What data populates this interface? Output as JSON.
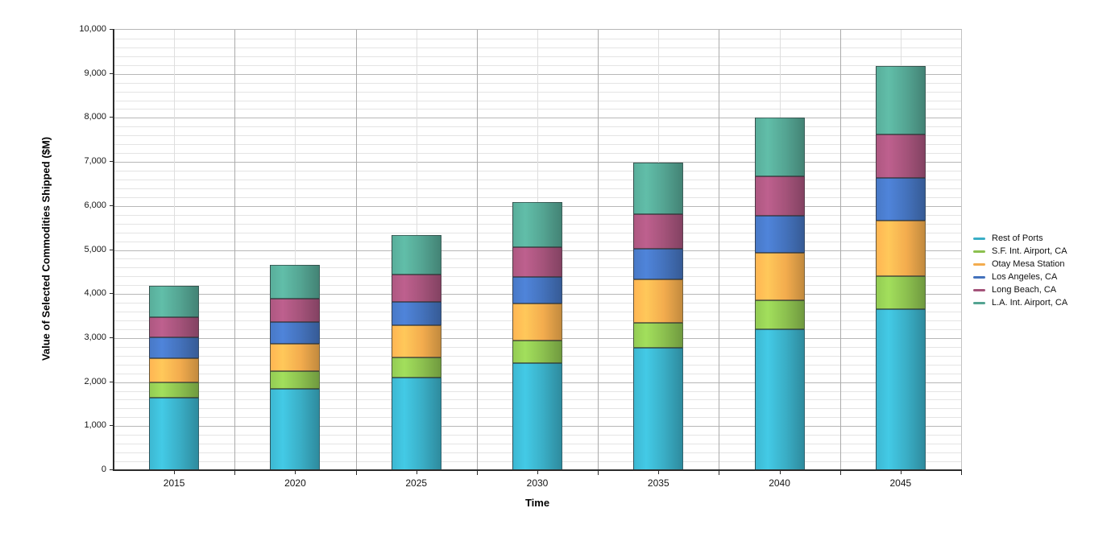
{
  "y_axis": {
    "label": "Value of Selected Commodities Shipped ($M)",
    "tick_labels": [
      "0",
      "1,000",
      "2,000",
      "3,000",
      "4,000",
      "5,000",
      "6,000",
      "7,000",
      "8,000",
      "9,000",
      "10,000"
    ],
    "max": 10000,
    "major_step": 1000,
    "minor_step": 200
  },
  "x_axis": {
    "label": "Time",
    "categories": [
      "2015",
      "2020",
      "2025",
      "2030",
      "2035",
      "2040",
      "2045"
    ]
  },
  "chart_data": {
    "type": "bar",
    "stacked": true,
    "title": "",
    "xlabel": "Time",
    "ylabel": "Value of Selected Commodities Shipped ($M)",
    "ylim": [
      0,
      10000
    ],
    "grid": true,
    "legend_position": "right",
    "categories": [
      "2015",
      "2020",
      "2025",
      "2030",
      "2035",
      "2040",
      "2045"
    ],
    "series": [
      {
        "name": "Rest of Ports",
        "color": "#3aaec6",
        "values": [
          1650,
          1840,
          2100,
          2430,
          2780,
          3195,
          3650
        ]
      },
      {
        "name": "S.F. Int. Airport, CA",
        "color": "#8cc04f",
        "values": [
          350,
          410,
          455,
          520,
          565,
          665,
          760
        ]
      },
      {
        "name": "Otay Mesa Station",
        "color": "#f3ac4e",
        "values": [
          550,
          625,
          730,
          835,
          990,
          1080,
          1255
        ]
      },
      {
        "name": "Los Angeles, CA",
        "color": "#4472bc",
        "values": [
          475,
          490,
          530,
          600,
          700,
          840,
          970
        ]
      },
      {
        "name": "Long Beach, CA",
        "color": "#a4537a",
        "values": [
          440,
          530,
          625,
          680,
          775,
          885,
          990
        ]
      },
      {
        "name": "L.A. Int. Airport, CA",
        "color": "#54a492",
        "values": [
          730,
          760,
          895,
          1020,
          1170,
          1340,
          1555
        ]
      }
    ],
    "totals": [
      4195,
      4655,
      5335,
      6085,
      6980,
      8005,
      9180
    ]
  }
}
